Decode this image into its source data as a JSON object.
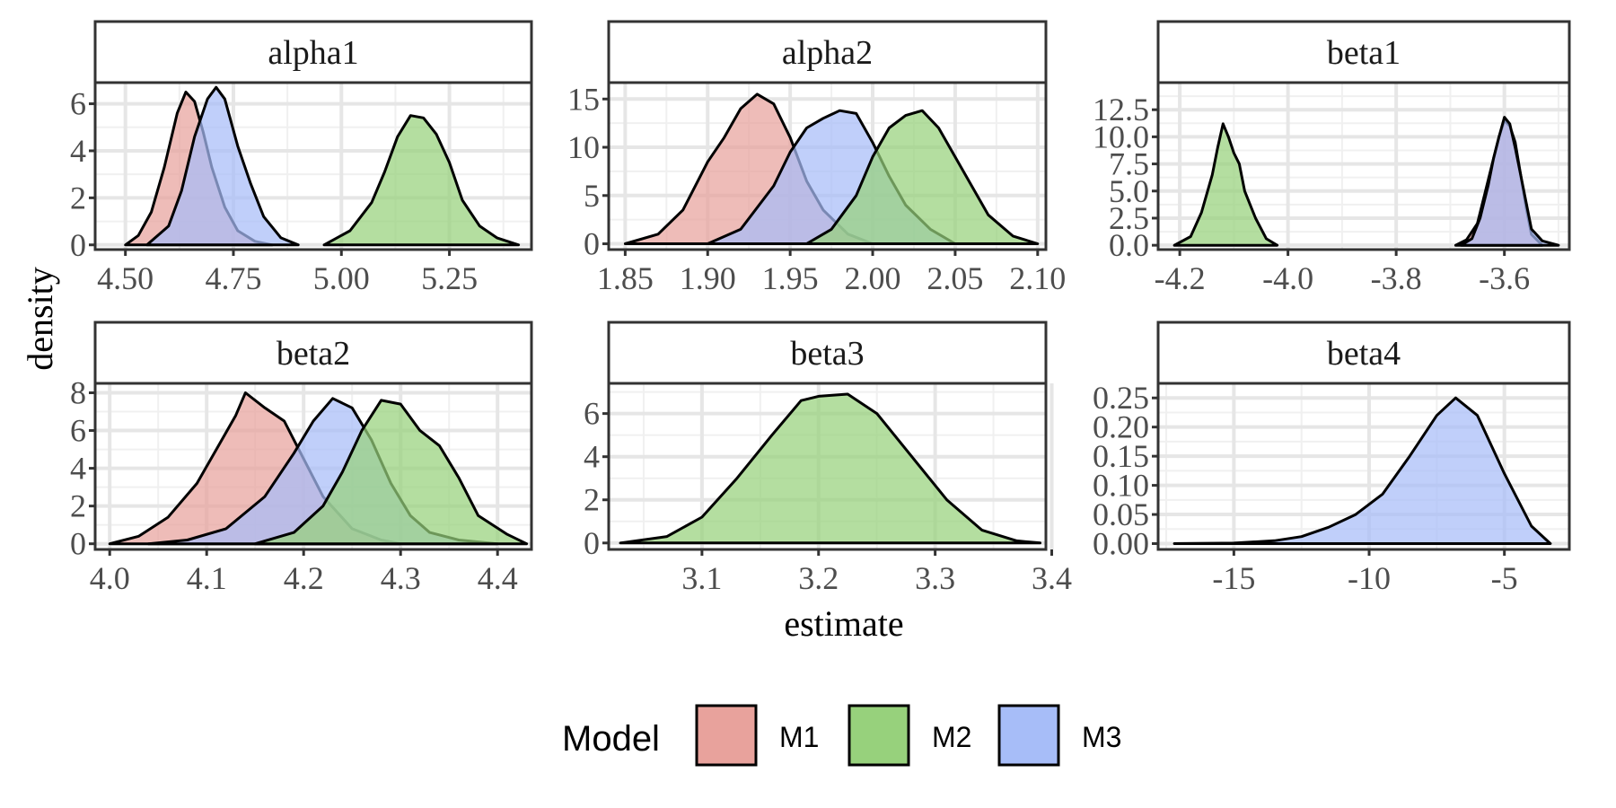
{
  "chart_data": {
    "type": "area",
    "kind": "density",
    "xlabel": "estimate",
    "ylabel": "density",
    "grid": true,
    "legend": {
      "title": "Model",
      "position": "bottom",
      "entries": [
        {
          "name": "M1",
          "color": "#e8a29c"
        },
        {
          "name": "M2",
          "color": "#97d17c"
        },
        {
          "name": "M3",
          "color": "#a7bdf8"
        }
      ]
    },
    "panels": [
      {
        "title": "alpha1",
        "xlim": [
          4.43,
          5.44
        ],
        "ylim": [
          -0.2,
          6.9
        ],
        "xticks": [
          4.5,
          4.75,
          5.0,
          5.25
        ],
        "xtick_labels": [
          "4.50",
          "4.75",
          "5.00",
          "5.25"
        ],
        "yticks": [
          0,
          2,
          4,
          6
        ],
        "ytick_labels": [
          "0",
          "2",
          "4",
          "6"
        ],
        "series": [
          {
            "name": "M1",
            "x": [
              4.5,
              4.53,
              4.56,
              4.59,
              4.62,
              4.64,
              4.66,
              4.68,
              4.7,
              4.73,
              4.76,
              4.8,
              4.84
            ],
            "y": [
              0,
              0.4,
              1.4,
              3.3,
              5.6,
              6.5,
              6.1,
              4.8,
              3.3,
              1.6,
              0.6,
              0.15,
              0
            ]
          },
          {
            "name": "M3",
            "x": [
              4.55,
              4.6,
              4.63,
              4.66,
              4.69,
              4.71,
              4.73,
              4.76,
              4.79,
              4.82,
              4.86,
              4.9
            ],
            "y": [
              0,
              0.8,
              2.3,
              4.6,
              6.2,
              6.7,
              6.2,
              4.2,
              2.6,
              1.2,
              0.3,
              0
            ]
          },
          {
            "name": "M2",
            "x": [
              4.96,
              5.02,
              5.07,
              5.1,
              5.13,
              5.16,
              5.19,
              5.22,
              5.25,
              5.28,
              5.32,
              5.36,
              5.41
            ],
            "y": [
              0,
              0.6,
              1.8,
              3.1,
              4.6,
              5.5,
              5.4,
              4.7,
              3.5,
              1.9,
              0.8,
              0.3,
              0
            ]
          }
        ]
      },
      {
        "title": "alpha2",
        "xlim": [
          1.84,
          2.105
        ],
        "ylim": [
          -0.6,
          16.7
        ],
        "xticks": [
          1.85,
          1.9,
          1.95,
          2.0,
          2.05,
          2.1
        ],
        "xtick_labels": [
          "1.85",
          "1.90",
          "1.95",
          "2.00",
          "2.05",
          "2.10"
        ],
        "yticks": [
          0,
          5,
          10,
          15
        ],
        "ytick_labels": [
          "0",
          "5",
          "10",
          "15"
        ],
        "series": [
          {
            "name": "M1",
            "x": [
              1.85,
              1.87,
              1.885,
              1.9,
              1.91,
              1.92,
              1.93,
              1.94,
              1.95,
              1.96,
              1.97,
              1.985,
              2.0
            ],
            "y": [
              0,
              1,
              3.5,
              8.5,
              11,
              14,
              15.5,
              14.5,
              11,
              6.5,
              3.5,
              1,
              0
            ]
          },
          {
            "name": "M3",
            "x": [
              1.9,
              1.92,
              1.94,
              1.95,
              1.96,
              1.97,
              1.98,
              1.99,
              2.0,
              2.01,
              2.02,
              2.035,
              2.05
            ],
            "y": [
              0,
              1.5,
              6,
              9.5,
              12,
              13,
              13.8,
              13.5,
              10.5,
              7,
              4,
              1.5,
              0
            ]
          },
          {
            "name": "M2",
            "x": [
              1.96,
              1.975,
              1.99,
              2.0,
              2.01,
              2.02,
              2.03,
              2.04,
              2.05,
              2.06,
              2.07,
              2.085,
              2.1
            ],
            "y": [
              0,
              1.5,
              5,
              9,
              12,
              13.3,
              13.8,
              12,
              9,
              6,
              3,
              0.8,
              0
            ]
          }
        ]
      },
      {
        "title": "beta1",
        "xlim": [
          -4.24,
          -3.48
        ],
        "ylim": [
          -0.4,
          15.0
        ],
        "xticks": [
          -4.2,
          -4.0,
          -3.8,
          -3.6
        ],
        "xtick_labels": [
          "-4.2",
          "-4.0",
          "-3.8",
          "-3.6"
        ],
        "yticks": [
          0,
          2.5,
          5.0,
          7.5,
          10.0,
          12.5
        ],
        "ytick_labels": [
          "0.0",
          "2.5",
          "5.0",
          "7.5",
          "10.0",
          "12.5"
        ],
        "series": [
          {
            "name": "M2",
            "x": [
              -4.21,
              -4.18,
              -4.16,
              -4.14,
              -4.13,
              -4.12,
              -4.11,
              -4.1,
              -4.09,
              -4.08,
              -4.06,
              -4.04,
              -4.02
            ],
            "y": [
              0,
              0.8,
              3,
              6.5,
              9,
              11.2,
              10,
              8.5,
              7.5,
              5,
              2.5,
              0.6,
              0
            ]
          },
          {
            "name": "M1",
            "x": [
              -3.69,
              -3.67,
              -3.65,
              -3.64,
              -3.63,
              -3.62,
              -3.61,
              -3.6,
              -3.59,
              -3.58,
              -3.57,
              -3.56,
              -3.55,
              -3.53
            ],
            "y": [
              0,
              0.5,
              2,
              4,
              6,
              8,
              10,
              11.5,
              11,
              9.5,
              6.5,
              3.5,
              1,
              0
            ]
          },
          {
            "name": "M3",
            "x": [
              -3.68,
              -3.66,
              -3.645,
              -3.63,
              -3.62,
              -3.61,
              -3.6,
              -3.59,
              -3.58,
              -3.57,
              -3.56,
              -3.55,
              -3.53,
              -3.5
            ],
            "y": [
              0,
              0.6,
              2.5,
              5.5,
              8,
              10,
              11.8,
              11.2,
              9,
              6.5,
              4,
              1.5,
              0.4,
              0
            ]
          }
        ]
      },
      {
        "title": "beta2",
        "xlim": [
          3.985,
          4.435
        ],
        "ylim": [
          -0.3,
          8.5
        ],
        "xticks": [
          4.0,
          4.1,
          4.2,
          4.3,
          4.4
        ],
        "xtick_labels": [
          "4.0",
          "4.1",
          "4.2",
          "4.3",
          "4.4"
        ],
        "yticks": [
          0,
          2,
          4,
          6,
          8
        ],
        "ytick_labels": [
          "0",
          "2",
          "4",
          "6",
          "8"
        ],
        "series": [
          {
            "name": "M1",
            "x": [
              4.0,
              4.03,
              4.06,
              4.09,
              4.11,
              4.13,
              4.14,
              4.16,
              4.18,
              4.2,
              4.22,
              4.25,
              4.28,
              4.3
            ],
            "y": [
              0,
              0.4,
              1.4,
              3.2,
              5,
              6.8,
              8,
              7.2,
              6.5,
              4.5,
              2.5,
              0.8,
              0.2,
              0
            ]
          },
          {
            "name": "M3",
            "x": [
              4.04,
              4.08,
              4.12,
              4.16,
              4.19,
              4.21,
              4.23,
              4.25,
              4.27,
              4.29,
              4.31,
              4.33,
              4.36,
              4.4
            ],
            "y": [
              0,
              0.2,
              0.8,
              2.5,
              4.8,
              6.5,
              7.7,
              7.2,
              5.5,
              3.2,
              1.5,
              0.6,
              0.2,
              0
            ]
          },
          {
            "name": "M2",
            "x": [
              4.15,
              4.19,
              4.22,
              4.24,
              4.26,
              4.28,
              4.3,
              4.32,
              4.34,
              4.36,
              4.38,
              4.41,
              4.43
            ],
            "y": [
              0,
              0.6,
              2,
              3.8,
              6,
              7.6,
              7.4,
              6,
              5.2,
              3.5,
              1.5,
              0.5,
              0
            ]
          }
        ]
      },
      {
        "title": "beta3",
        "xlim": [
          3.02,
          3.395
        ],
        "ylim": [
          -0.3,
          7.4
        ],
        "xticks": [
          3.1,
          3.2,
          3.3,
          3.4
        ],
        "xtick_labels": [
          "3.1",
          "3.2",
          "3.3",
          "3.4"
        ],
        "yticks": [
          0,
          2,
          4,
          6
        ],
        "ytick_labels": [
          "0",
          "2",
          "4",
          "6"
        ],
        "series": [
          {
            "name": "M2",
            "x": [
              3.03,
              3.07,
              3.1,
              3.13,
              3.16,
              3.185,
              3.2,
              3.225,
              3.25,
              3.28,
              3.31,
              3.34,
              3.37,
              3.39
            ],
            "y": [
              0,
              0.3,
              1.2,
              3,
              5,
              6.6,
              6.8,
              6.9,
              6,
              4,
              2,
              0.6,
              0.1,
              0
            ]
          }
        ]
      },
      {
        "title": "beta4",
        "xlim": [
          -17.8,
          -2.6
        ],
        "ylim": [
          -0.01,
          0.275
        ],
        "xticks": [
          -15,
          -10,
          -5
        ],
        "xtick_labels": [
          "-15",
          "-10",
          "-5"
        ],
        "yticks": [
          0,
          0.05,
          0.1,
          0.15,
          0.2,
          0.25
        ],
        "ytick_labels": [
          "0.00",
          "0.05",
          "0.10",
          "0.15",
          "0.20",
          "0.25"
        ],
        "series": [
          {
            "name": "M3",
            "x": [
              -17.2,
              -15,
              -13.5,
              -12.5,
              -11.5,
              -10.5,
              -9.5,
              -8.5,
              -7.5,
              -6.8,
              -6,
              -5,
              -4,
              -3.3
            ],
            "y": [
              0,
              0.001,
              0.005,
              0.012,
              0.028,
              0.05,
              0.085,
              0.15,
              0.22,
              0.25,
              0.22,
              0.12,
              0.03,
              0
            ]
          }
        ]
      }
    ]
  }
}
